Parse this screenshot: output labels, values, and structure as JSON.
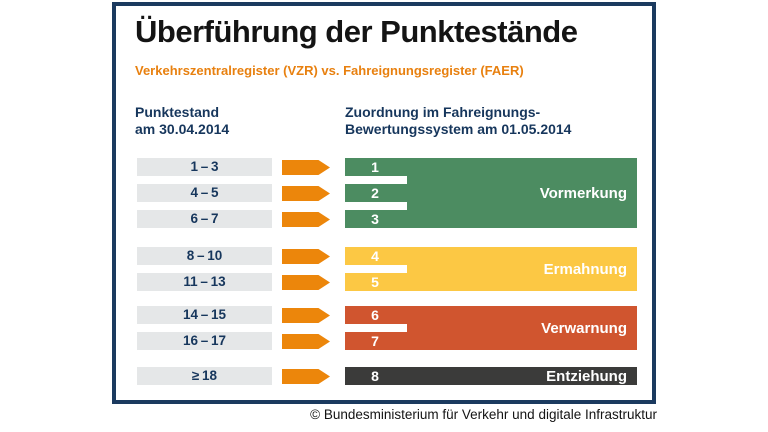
{
  "header": {
    "title": "Überführung der Punktestände",
    "subtitle": "Verkehrszentralregister (VZR) vs. Fahreignungsregister (FAER)"
  },
  "columns": {
    "left": {
      "line1": "Punktestand",
      "line2": "am 30.04.2014"
    },
    "right": {
      "line1": "Zuordnung im Fahreignungs-",
      "line2": "Bewertungssystem am 01.05.2014"
    }
  },
  "groups": [
    {
      "label": "Vormerkung",
      "color": "#4c8c61",
      "rows": [
        {
          "vzr": "1 – 3",
          "faer": "1"
        },
        {
          "vzr": "4 – 5",
          "faer": "2"
        },
        {
          "vzr": "6 – 7",
          "faer": "3"
        }
      ]
    },
    {
      "label": "Ermahnung",
      "color": "#fcc844",
      "rows": [
        {
          "vzr": "8 – 10",
          "faer": "4"
        },
        {
          "vzr": "11 – 13",
          "faer": "5"
        }
      ]
    },
    {
      "label": "Verwarnung",
      "color": "#d0552f",
      "rows": [
        {
          "vzr": "14 – 15",
          "faer": "6"
        },
        {
          "vzr": "16 – 17",
          "faer": "7"
        }
      ]
    },
    {
      "label": "Entziehung",
      "color": "#3b3b3a",
      "rows": [
        {
          "vzr": "≥ 18",
          "faer": "8"
        }
      ]
    }
  ],
  "colors": {
    "border_navy": "#1b3a5f",
    "text_navy": "#16365c",
    "accent_orange": "#ec860b",
    "range_box_gray": "#e5e7e8",
    "label_white": "#ffffff"
  },
  "footer": {
    "copyright": "© Bundesministerium für Verkehr und digitale Infrastruktur"
  }
}
